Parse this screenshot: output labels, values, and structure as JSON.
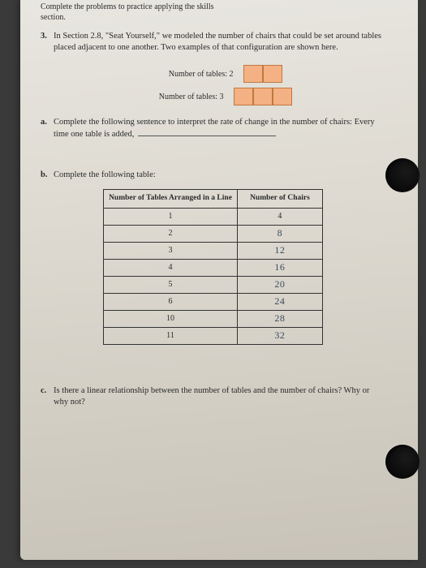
{
  "top_line1": "Complete the problems to practice applying the skills",
  "top_line2": "section.",
  "q3_num": "3.",
  "q3_text": "In Section 2.8, \"Seat Yourself,\" we modeled the number of chairs that could be set around tables placed adjacent to one another. Two examples of that configuration are shown here.",
  "diag1_label": "Number of tables: 2",
  "diag1_count": 2,
  "diag2_label": "Number of tables: 3",
  "diag2_count": 3,
  "square_fill": "#f4b183",
  "square_border": "#c07840",
  "part_a_lett": "a.",
  "part_a_text": "Complete the following sentence to interpret the rate of change in the number of chairs: Every time one table is added, ",
  "part_b_lett": "b.",
  "part_b_text": "Complete the following table:",
  "table": {
    "header1": "Number of Tables Arranged in a Line",
    "header2": "Number of Chairs",
    "rows": [
      {
        "t": "1",
        "c": "4",
        "hand": false
      },
      {
        "t": "2",
        "c": "8",
        "hand": true
      },
      {
        "t": "3",
        "c": "12",
        "hand": true
      },
      {
        "t": "4",
        "c": "16",
        "hand": true
      },
      {
        "t": "5",
        "c": "20",
        "hand": true
      },
      {
        "t": "6",
        "c": "24",
        "hand": true
      },
      {
        "t": "10",
        "c": "28",
        "hand": true
      },
      {
        "t": "11",
        "c": "32",
        "hand": true
      }
    ]
  },
  "part_c_lett": "c.",
  "part_c_text": "Is there a linear relationship between the number of tables and the number of chairs? Why or why not?"
}
